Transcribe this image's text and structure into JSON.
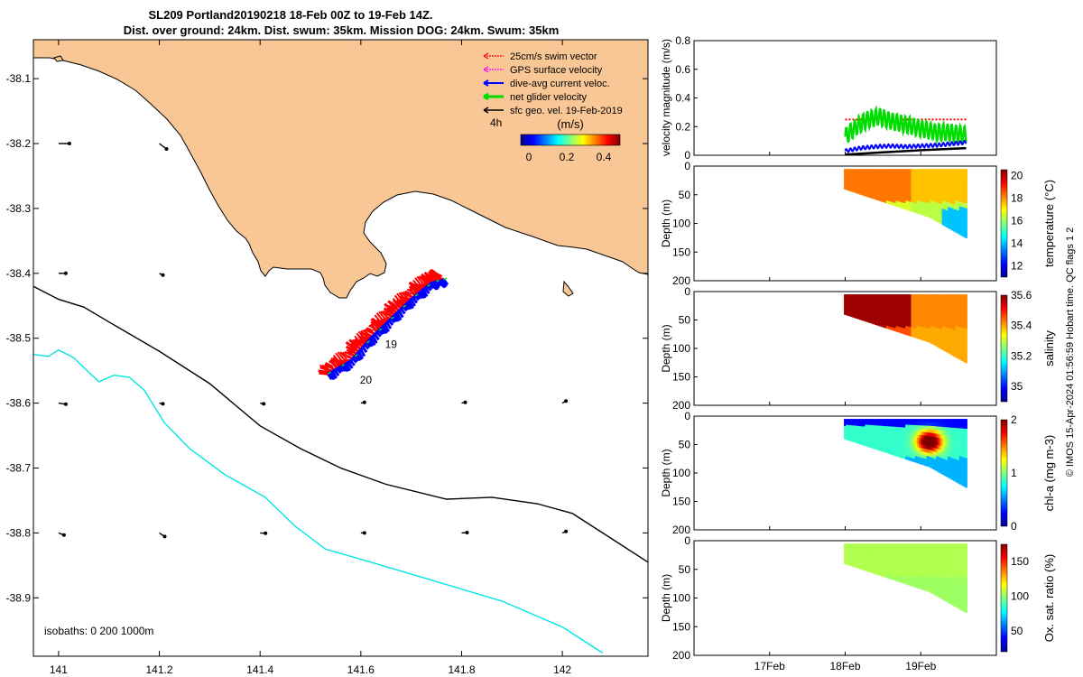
{
  "title_line1": "SL209 Portland20190218 18-Feb 00Z to 19-Feb 14Z.",
  "title_line2": "Dist. over ground: 24km. Dist. swum: 35km. Mission DOG: 24km. Swum: 35km",
  "footer": "© IMOS 15-Apr-2024 01:56:59 Hobart time. QC flags 1  2",
  "colors": {
    "land": "#f9c795",
    "swim": "#ff0000",
    "gps": "#ff00ff",
    "current": "#0000ff",
    "net": "#00dd00",
    "geo": "#000000",
    "isobath_200": "#000000",
    "isobath_1000": "#00e5e5"
  },
  "chart_data": [
    {
      "type": "map",
      "xlim": [
        140.95,
        142.17
      ],
      "ylim": [
        -38.99,
        -38.04
      ],
      "x_ticks": [
        "141",
        "141.2",
        "141.4",
        "141.6",
        "141.8",
        "142"
      ],
      "y_ticks": [
        "-38.1",
        "-38.2",
        "-38.3",
        "-38.4",
        "-38.5",
        "-38.6",
        "-38.7",
        "-38.8",
        "-38.9"
      ],
      "legend": [
        {
          "label": "25cm/s swim vector",
          "color": "#ff0000"
        },
        {
          "label": "GPS surface velocity",
          "color": "#ff00ff"
        },
        {
          "label": "dive-avg current veloc.",
          "color": "#0000ff"
        },
        {
          "label": "net glider velocity",
          "color": "#00dd00"
        },
        {
          "label": "sfc geo. vel. 19-Feb-2019",
          "color": "#000000"
        }
      ],
      "legend_time_label": "4h",
      "colorbar": {
        "label": "(m/s)",
        "ticks": [
          "0",
          "0.2",
          "0.4"
        ],
        "range": [
          0,
          0.5
        ]
      },
      "isobaths_label": "isobaths: 0   200  1000m",
      "day_labels": [
        {
          "text": "19",
          "lon": 141.66,
          "lat": -38.515
        },
        {
          "text": "20",
          "lon": 141.61,
          "lat": -38.57
        }
      ],
      "isobath_200": [
        [
          140.95,
          -38.42
        ],
        [
          141.0,
          -38.44
        ],
        [
          141.05,
          -38.452
        ],
        [
          141.1,
          -38.475
        ],
        [
          141.2,
          -38.52
        ],
        [
          141.3,
          -38.57
        ],
        [
          141.4,
          -38.635
        ],
        [
          141.48,
          -38.67
        ],
        [
          141.56,
          -38.7
        ],
        [
          141.65,
          -38.725
        ],
        [
          141.77,
          -38.748
        ],
        [
          141.86,
          -38.745
        ],
        [
          141.95,
          -38.755
        ],
        [
          142.02,
          -38.77
        ],
        [
          142.08,
          -38.8
        ],
        [
          142.17,
          -38.845
        ]
      ],
      "isobath_1000": [
        [
          140.95,
          -38.525
        ],
        [
          140.98,
          -38.528
        ],
        [
          141.0,
          -38.518
        ],
        [
          141.03,
          -38.53
        ],
        [
          141.05,
          -38.545
        ],
        [
          141.08,
          -38.567
        ],
        [
          141.11,
          -38.557
        ],
        [
          141.14,
          -38.56
        ],
        [
          141.17,
          -38.58
        ],
        [
          141.21,
          -38.63
        ],
        [
          141.26,
          -38.67
        ],
        [
          141.33,
          -38.71
        ],
        [
          141.41,
          -38.745
        ],
        [
          141.47,
          -38.79
        ],
        [
          141.53,
          -38.825
        ],
        [
          141.62,
          -38.845
        ],
        [
          141.75,
          -38.875
        ],
        [
          141.88,
          -38.905
        ],
        [
          142.0,
          -38.945
        ],
        [
          142.08,
          -38.985
        ]
      ],
      "track": [
        [
          141.535,
          -38.555
        ],
        [
          141.58,
          -38.535
        ],
        [
          141.62,
          -38.5
        ],
        [
          141.66,
          -38.47
        ],
        [
          141.7,
          -38.44
        ],
        [
          141.74,
          -38.415
        ],
        [
          141.765,
          -38.41
        ]
      ],
      "geo_vectors": [
        {
          "lon": 141.0,
          "lat": -38.2,
          "u": 0.3,
          "v": 0.0
        },
        {
          "lon": 141.2,
          "lat": -38.2,
          "u": 0.2,
          "v": -0.15
        },
        {
          "lon": 141.0,
          "lat": -38.4,
          "u": 0.2,
          "v": 0.0
        },
        {
          "lon": 141.2,
          "lat": -38.4,
          "u": 0.1,
          "v": -0.05
        },
        {
          "lon": 141.0,
          "lat": -38.6,
          "u": 0.2,
          "v": -0.03
        },
        {
          "lon": 141.2,
          "lat": -38.6,
          "u": 0.1,
          "v": -0.02
        },
        {
          "lon": 141.4,
          "lat": -38.6,
          "u": 0.1,
          "v": -0.02
        },
        {
          "lon": 141.6,
          "lat": -38.6,
          "u": 0.1,
          "v": 0.02
        },
        {
          "lon": 141.8,
          "lat": -38.6,
          "u": 0.1,
          "v": 0.02
        },
        {
          "lon": 142.0,
          "lat": -38.6,
          "u": 0.1,
          "v": 0.06
        },
        {
          "lon": 141.0,
          "lat": -38.8,
          "u": 0.15,
          "v": -0.06
        },
        {
          "lon": 141.2,
          "lat": -38.8,
          "u": 0.15,
          "v": -0.1
        },
        {
          "lon": 141.4,
          "lat": -38.8,
          "u": 0.15,
          "v": -0.01
        },
        {
          "lon": 141.6,
          "lat": -38.8,
          "u": 0.1,
          "v": 0.0
        },
        {
          "lon": 141.8,
          "lat": -38.8,
          "u": 0.15,
          "v": 0.01
        },
        {
          "lon": 142.0,
          "lat": -38.8,
          "u": 0.1,
          "v": 0.04
        }
      ]
    },
    {
      "type": "line",
      "ylabel": "velocity magnitude (m/s)",
      "ylim": [
        0,
        0.8
      ],
      "y_ticks": [
        "0",
        "0.2",
        "0.4",
        "0.6",
        "0.8"
      ],
      "x_ticks": [
        "17Feb",
        "18Feb",
        "19Feb"
      ],
      "xlim": [
        16.0,
        20.0
      ],
      "series": [
        {
          "color": "#ff0000",
          "style": "dashed",
          "values": [
            [
              18.0,
              0.25
            ],
            [
              19.6,
              0.25
            ]
          ]
        },
        {
          "color": "#00dd00",
          "oscillating": true,
          "x": [
            18.0,
            18.15,
            18.3,
            18.45,
            18.6,
            18.75,
            18.9,
            19.05,
            19.2,
            19.35,
            19.5,
            19.6
          ],
          "y": [
            0.13,
            0.2,
            0.25,
            0.27,
            0.24,
            0.22,
            0.2,
            0.18,
            0.16,
            0.16,
            0.15,
            0.14
          ],
          "amp": 0.06
        },
        {
          "color": "#0000ff",
          "oscillating": true,
          "x": [
            18.0,
            18.2,
            18.4,
            18.6,
            18.8,
            19.0,
            19.2,
            19.4,
            19.6
          ],
          "y": [
            0.03,
            0.05,
            0.06,
            0.065,
            0.06,
            0.065,
            0.07,
            0.08,
            0.09
          ],
          "amp": 0.012
        },
        {
          "color": "#000000",
          "x": [
            18.0,
            18.5,
            19.0,
            19.6
          ],
          "y": [
            0.005,
            0.02,
            0.035,
            0.05
          ]
        }
      ]
    },
    {
      "type": "heatmap",
      "ylabel": "Depth (m)",
      "ylim": [
        200,
        0
      ],
      "y_ticks": [
        "0",
        "50",
        "100",
        "150",
        "200"
      ],
      "colorbar_label": "temperature (°C)",
      "colorbar_ticks": [
        "12",
        "14",
        "16",
        "18",
        "20"
      ],
      "crange": [
        11,
        20.5
      ],
      "base_value": 18.2,
      "features": [
        {
          "d0": 0.55,
          "value": 17.5
        }
      ],
      "deep_value": 15.5
    },
    {
      "type": "heatmap",
      "ylabel": "Depth (m)",
      "ylim": [
        200,
        0
      ],
      "y_ticks": [
        "0",
        "50",
        "100",
        "150",
        "200"
      ],
      "colorbar_label": "salinity",
      "colorbar_ticks": [
        "35",
        "35.2",
        "35.4",
        "35.6"
      ],
      "crange": [
        34.9,
        35.6
      ],
      "base_value": 35.58,
      "features": [
        {
          "d0": 0.55,
          "value": 35.42
        }
      ],
      "deep_value": 35.38
    },
    {
      "type": "heatmap",
      "ylabel": "Depth (m)",
      "ylim": [
        200,
        0
      ],
      "y_ticks": [
        "0",
        "50",
        "100",
        "150",
        "200"
      ],
      "colorbar_label": "chl-a (mg m-3)",
      "colorbar_ticks": [
        "0",
        "1",
        "2"
      ],
      "crange": [
        0,
        2
      ],
      "base_value": 0.5,
      "features": [
        {
          "d0": 0.5,
          "value": 1.8
        }
      ],
      "deep_value": 0.5
    },
    {
      "type": "heatmap",
      "ylabel": "Depth (m)",
      "ylim": [
        200,
        0
      ],
      "y_ticks": [
        "0",
        "50",
        "100",
        "150",
        "200"
      ],
      "colorbar_label": "Ox. sat. ratio (%)",
      "colorbar_ticks": [
        "50",
        "100",
        "150"
      ],
      "crange": [
        20,
        175
      ],
      "base_value": 105,
      "features": [],
      "deep_value": 100
    }
  ]
}
